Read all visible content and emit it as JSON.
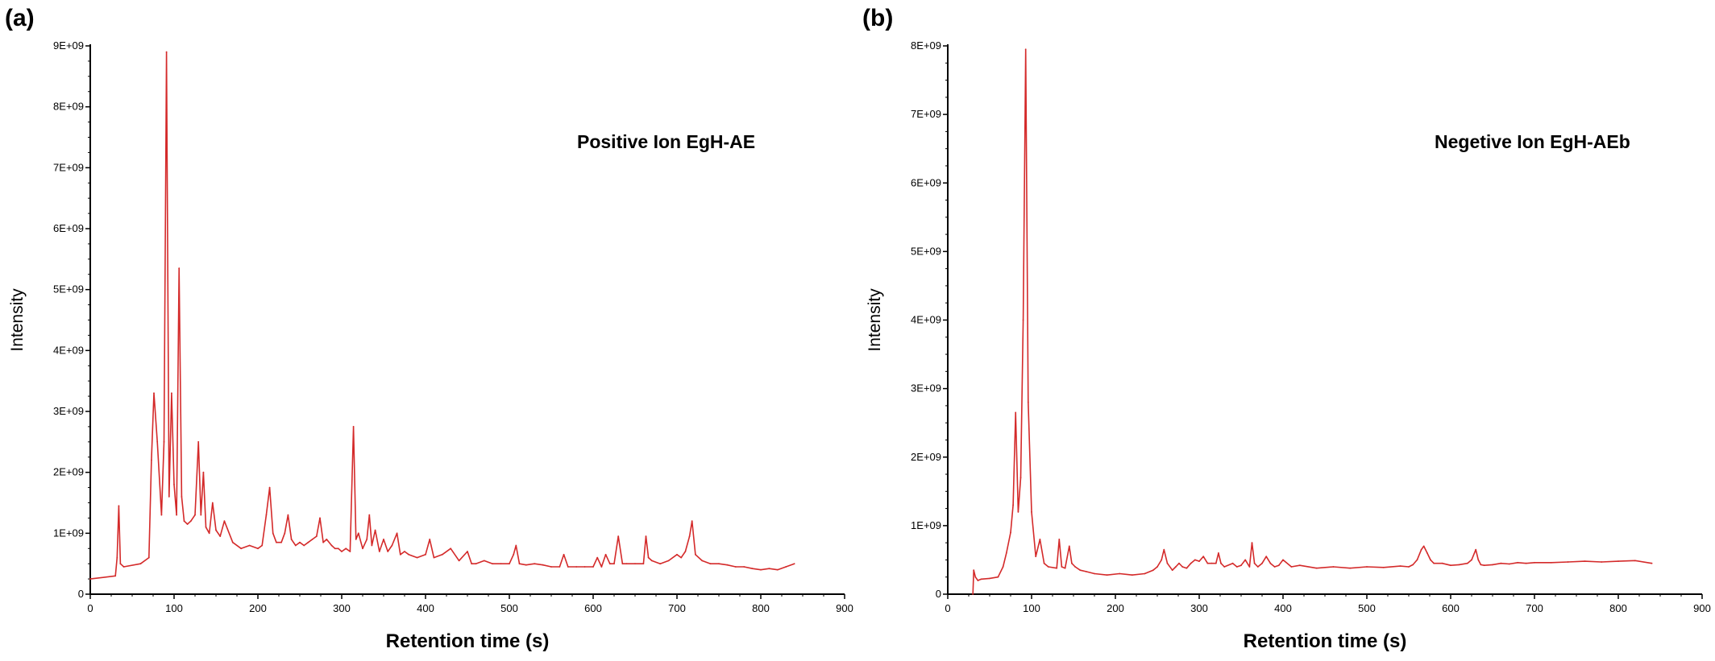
{
  "chart_data": [
    {
      "type": "line",
      "panel_label": "(a)",
      "annotation": "Positive Ion EgH-AE",
      "xlabel": "Retention time (s)",
      "ylabel": "Intensity",
      "xlim": [
        0,
        900
      ],
      "ylim": [
        0,
        9000000000
      ],
      "xticks": [
        "0",
        "100",
        "200",
        "300",
        "400",
        "500",
        "600",
        "700",
        "800",
        "900"
      ],
      "yticks": [
        "0",
        "1E+09",
        "2E+09",
        "3E+09",
        "4E+09",
        "5E+09",
        "6E+09",
        "7E+09",
        "8E+09",
        "9E+09"
      ],
      "grid": false,
      "color": "#d42a2a",
      "series": [
        {
          "x": [
            0,
            30,
            32,
            34,
            36,
            40,
            60,
            70,
            73,
            76,
            80,
            85,
            88,
            91,
            94,
            97,
            100,
            103,
            106,
            109,
            112,
            116,
            120,
            125,
            129,
            132,
            135,
            138,
            142,
            146,
            150,
            155,
            160,
            170,
            180,
            190,
            200,
            205,
            210,
            214,
            218,
            222,
            228,
            232,
            236,
            240,
            245,
            250,
            255,
            260,
            265,
            270,
            274,
            278,
            282,
            288,
            292,
            296,
            300,
            305,
            310,
            314,
            317,
            320,
            325,
            330,
            333,
            336,
            340,
            345,
            350,
            355,
            360,
            366,
            370,
            375,
            380,
            390,
            400,
            405,
            410,
            420,
            430,
            440,
            450,
            455,
            460,
            470,
            480,
            490,
            500,
            505,
            508,
            512,
            520,
            530,
            540,
            550,
            560,
            565,
            570,
            580,
            590,
            600,
            605,
            610,
            615,
            620,
            625,
            630,
            635,
            640,
            650,
            660,
            663,
            666,
            670,
            680,
            690,
            700,
            705,
            710,
            715,
            718,
            722,
            730,
            740,
            750,
            760,
            770,
            780,
            790,
            800,
            810,
            820,
            830,
            840
          ],
          "y": [
            250000000.0,
            300000000.0,
            600000000.0,
            1450000000.0,
            500000000.0,
            450000000.0,
            500000000.0,
            600000000.0,
            2200000000.0,
            3300000000.0,
            2500000000.0,
            1300000000.0,
            2500000000.0,
            8900000000.0,
            1600000000.0,
            3300000000.0,
            1800000000.0,
            1300000000.0,
            5350000000.0,
            1600000000.0,
            1200000000.0,
            1150000000.0,
            1200000000.0,
            1300000000.0,
            2500000000.0,
            1300000000.0,
            2000000000.0,
            1100000000.0,
            1000000000.0,
            1500000000.0,
            1050000000.0,
            950000000.0,
            1200000000.0,
            850000000.0,
            750000000.0,
            800000000.0,
            750000000.0,
            800000000.0,
            1300000000.0,
            1750000000.0,
            1000000000.0,
            850000000.0,
            850000000.0,
            1000000000.0,
            1300000000.0,
            900000000.0,
            800000000.0,
            850000000.0,
            800000000.0,
            850000000.0,
            900000000.0,
            950000000.0,
            1250000000.0,
            850000000.0,
            900000000.0,
            800000000.0,
            750000000.0,
            750000000.0,
            700000000.0,
            750000000.0,
            700000000.0,
            2750000000.0,
            900000000.0,
            1000000000.0,
            750000000.0,
            900000000.0,
            1300000000.0,
            800000000.0,
            1050000000.0,
            700000000.0,
            900000000.0,
            700000000.0,
            800000000.0,
            1000000000.0,
            650000000.0,
            700000000.0,
            650000000.0,
            600000000.0,
            650000000.0,
            900000000.0,
            600000000.0,
            650000000.0,
            750000000.0,
            550000000.0,
            700000000.0,
            500000000.0,
            500000000.0,
            550000000.0,
            500000000.0,
            500000000.0,
            500000000.0,
            650000000.0,
            800000000.0,
            500000000.0,
            480000000.0,
            500000000.0,
            480000000.0,
            450000000.0,
            450000000.0,
            650000000.0,
            450000000.0,
            450000000.0,
            450000000.0,
            450000000.0,
            600000000.0,
            450000000.0,
            650000000.0,
            500000000.0,
            500000000.0,
            950000000.0,
            500000000.0,
            500000000.0,
            500000000.0,
            500000000.0,
            950000000.0,
            600000000.0,
            550000000.0,
            500000000.0,
            550000000.0,
            650000000.0,
            600000000.0,
            700000000.0,
            950000000.0,
            1200000000.0,
            650000000.0,
            550000000.0,
            500000000.0,
            500000000.0,
            480000000.0,
            450000000.0,
            450000000.0,
            420000000.0,
            400000000.0,
            420000000.0,
            400000000.0,
            450000000.0,
            500000000.0
          ]
        }
      ]
    },
    {
      "type": "line",
      "panel_label": "(b)",
      "annotation": "Negetive Ion EgH-AEb",
      "xlabel": "Retention time (s)",
      "ylabel": "Intensity",
      "xlim": [
        0,
        900
      ],
      "ylim": [
        0,
        8000000000
      ],
      "xticks": [
        "0",
        "100",
        "200",
        "300",
        "400",
        "500",
        "600",
        "700",
        "800",
        "900"
      ],
      "yticks": [
        "0",
        "1E+09",
        "2E+09",
        "3E+09",
        "4E+09",
        "5E+09",
        "6E+09",
        "7E+09",
        "8E+09"
      ],
      "grid": false,
      "color": "#d42a2a",
      "series": [
        {
          "x": [
            30,
            31,
            33,
            36,
            40,
            50,
            60,
            66,
            70,
            75,
            78,
            81,
            84,
            87,
            90,
            93,
            96,
            100,
            105,
            110,
            115,
            120,
            130,
            133,
            136,
            140,
            145,
            148,
            152,
            158,
            165,
            175,
            190,
            205,
            220,
            235,
            245,
            250,
            255,
            258,
            262,
            268,
            272,
            276,
            280,
            285,
            290,
            295,
            300,
            305,
            310,
            315,
            320,
            323,
            326,
            330,
            340,
            345,
            350,
            355,
            360,
            363,
            366,
            370,
            375,
            380,
            385,
            390,
            395,
            400,
            410,
            420,
            440,
            460,
            480,
            500,
            520,
            540,
            550,
            555,
            560,
            565,
            568,
            572,
            576,
            580,
            590,
            600,
            610,
            620,
            625,
            630,
            633,
            636,
            640,
            650,
            660,
            670,
            680,
            690,
            700,
            720,
            740,
            760,
            780,
            800,
            820,
            840
          ],
          "y": [
            0,
            350000000.0,
            250000000.0,
            200000000.0,
            220000000.0,
            230000000.0,
            250000000.0,
            400000000.0,
            600000000.0,
            900000000.0,
            1300000000.0,
            2650000000.0,
            1200000000.0,
            1700000000.0,
            4000000000.0,
            7950000000.0,
            2800000000.0,
            1200000000.0,
            550000000.0,
            800000000.0,
            450000000.0,
            400000000.0,
            380000000.0,
            800000000.0,
            400000000.0,
            380000000.0,
            700000000.0,
            450000000.0,
            400000000.0,
            350000000.0,
            330000000.0,
            300000000.0,
            280000000.0,
            300000000.0,
            280000000.0,
            300000000.0,
            350000000.0,
            400000000.0,
            500000000.0,
            650000000.0,
            450000000.0,
            350000000.0,
            400000000.0,
            450000000.0,
            400000000.0,
            380000000.0,
            450000000.0,
            500000000.0,
            480000000.0,
            550000000.0,
            450000000.0,
            450000000.0,
            450000000.0,
            600000000.0,
            450000000.0,
            400000000.0,
            450000000.0,
            400000000.0,
            420000000.0,
            500000000.0,
            400000000.0,
            750000000.0,
            450000000.0,
            400000000.0,
            450000000.0,
            550000000.0,
            450000000.0,
            400000000.0,
            420000000.0,
            500000000.0,
            400000000.0,
            420000000.0,
            380000000.0,
            400000000.0,
            380000000.0,
            400000000.0,
            390000000.0,
            410000000.0,
            400000000.0,
            430000000.0,
            500000000.0,
            650000000.0,
            700000000.0,
            600000000.0,
            500000000.0,
            450000000.0,
            450000000.0,
            420000000.0,
            430000000.0,
            450000000.0,
            500000000.0,
            650000000.0,
            500000000.0,
            430000000.0,
            420000000.0,
            430000000.0,
            450000000.0,
            440000000.0,
            460000000.0,
            450000000.0,
            460000000.0,
            460000000.0,
            470000000.0,
            480000000.0,
            470000000.0,
            480000000.0,
            490000000.0,
            450000000.0
          ]
        }
      ]
    }
  ]
}
